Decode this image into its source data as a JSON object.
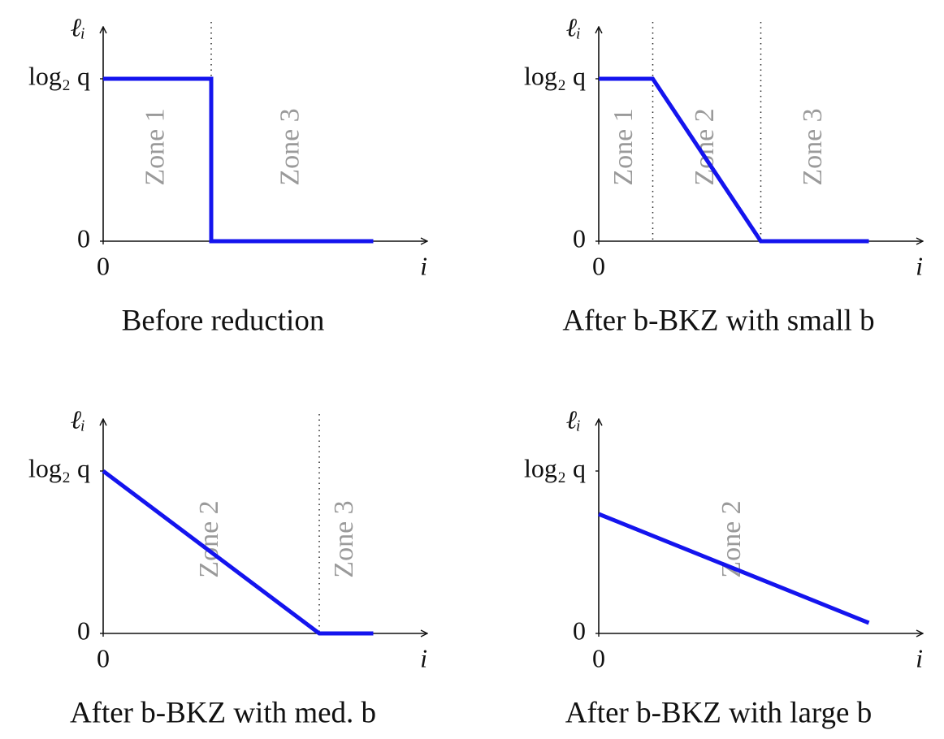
{
  "chart_data": [
    {
      "type": "line",
      "title": "Before reduction",
      "xlabel": "i",
      "ylabel": "ℓᵢ",
      "x": [
        0,
        1,
        1,
        2.5
      ],
      "series": [
        {
          "color": "#1414ee",
          "values": [
            1,
            1,
            0,
            0
          ]
        }
      ],
      "xlim": [
        0,
        3
      ],
      "ylim": [
        0,
        1.32
      ],
      "xticks": [
        0
      ],
      "yticks": [
        0,
        {
          "value": 1,
          "label": "log₂ q"
        }
      ],
      "vlines": [
        1
      ],
      "annotations": [
        {
          "text": "Zone 1",
          "x": 0.5,
          "y": 0.58
        },
        {
          "text": "Zone 3",
          "x": 1.75,
          "y": 0.58
        }
      ]
    },
    {
      "type": "line",
      "title": "After b-BKZ with small b",
      "xlabel": "i",
      "ylabel": "ℓᵢ",
      "x": [
        0,
        0.5,
        1.5,
        2.5
      ],
      "series": [
        {
          "color": "#1414ee",
          "values": [
            1,
            1,
            0,
            0
          ]
        }
      ],
      "xlim": [
        0,
        3
      ],
      "ylim": [
        0,
        1.32
      ],
      "xticks": [
        0
      ],
      "yticks": [
        0,
        {
          "value": 1,
          "label": "log₂ q"
        }
      ],
      "vlines": [
        0.5,
        1.5
      ],
      "annotations": [
        {
          "text": "Zone 1",
          "x": 0.25,
          "y": 0.58
        },
        {
          "text": "Zone 2",
          "x": 1.0,
          "y": 0.58
        },
        {
          "text": "Zone 3",
          "x": 2.0,
          "y": 0.58
        }
      ]
    },
    {
      "type": "line",
      "title": "After b-BKZ with med. b",
      "xlabel": "i",
      "ylabel": "ℓᵢ",
      "x": [
        0,
        2.0,
        2.5
      ],
      "series": [
        {
          "color": "#1414ee",
          "values": [
            1,
            0,
            0
          ]
        }
      ],
      "xlim": [
        0,
        3
      ],
      "ylim": [
        0,
        1.32
      ],
      "xticks": [
        0
      ],
      "yticks": [
        0,
        {
          "value": 1,
          "label": "log₂ q"
        }
      ],
      "vlines": [
        2.0
      ],
      "annotations": [
        {
          "text": "Zone 2",
          "x": 1.0,
          "y": 0.58
        },
        {
          "text": "Zone 3",
          "x": 2.25,
          "y": 0.58
        }
      ]
    },
    {
      "type": "line",
      "title": "After b-BKZ with large b",
      "xlabel": "i",
      "ylabel": "ℓᵢ",
      "x": [
        0,
        2.5
      ],
      "series": [
        {
          "color": "#1414ee",
          "values": [
            0.735,
            0.065
          ]
        }
      ],
      "xlim": [
        0,
        3
      ],
      "ylim": [
        0,
        1.32
      ],
      "xticks": [
        0
      ],
      "yticks": [
        0,
        {
          "value": 1,
          "label": "log₂ q"
        }
      ],
      "vlines": [],
      "annotations": [
        {
          "text": "Zone 2",
          "x": 1.25,
          "y": 0.58
        }
      ]
    }
  ]
}
